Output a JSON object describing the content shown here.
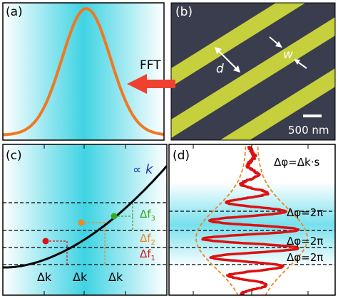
{
  "panels": {
    "a": {
      "label": "(a)"
    },
    "b": {
      "label": "(b)",
      "scale_bar": "500 nm",
      "dim_d": "d",
      "dim_w": "w"
    },
    "c": {
      "label": "(c)",
      "propto": "∝",
      "k": "k",
      "delta_k": "Δk",
      "df": [
        {
          "delta": "Δf",
          "sub": "3",
          "color": "#33aa22"
        },
        {
          "delta": "Δf",
          "sub": "2",
          "color": "#ee8822"
        },
        {
          "delta": "Δf",
          "sub": "1",
          "color": "#dd1111"
        }
      ]
    },
    "d": {
      "label": "(d)",
      "relation": "Δφ=Δk·s",
      "phase_labels": [
        "Δφ=2π",
        "Δφ=2π",
        "Δφ=2π"
      ]
    }
  },
  "arrow_label": "FFT",
  "colors": {
    "gaussian": "#f07820",
    "arrow": "#f04030",
    "cyan": "#4fd6e6",
    "curve": "#000000",
    "signal": "#dd1111",
    "envelope": "#ee8822",
    "stripe": "#c8d23a",
    "substrate": "#3a3d4d"
  },
  "chart_data": [
    {
      "type": "line",
      "panel": "a",
      "title": "",
      "series": [
        {
          "values_description_free": true,
          "x": [
            0,
            1,
            2,
            3,
            4,
            5,
            6,
            7,
            8,
            9,
            10
          ],
          "y": [
            0.01,
            0.05,
            0.19,
            0.49,
            0.85,
            1.0,
            0.85,
            0.49,
            0.19,
            0.05,
            0.01
          ]
        }
      ],
      "ylim": [
        0,
        1.05
      ]
    },
    {
      "type": "line",
      "panel": "c",
      "series": [
        {
          "values": [
            0.0,
            0.04,
            0.14,
            0.3,
            0.52,
            0.8
          ],
          "x": [
            0,
            0.2,
            0.4,
            0.6,
            0.8,
            1.0
          ]
        }
      ],
      "markers": [
        {
          "x": 0.28,
          "y": 0.09,
          "color": "#dd1111"
        },
        {
          "x": 0.47,
          "y": 0.25,
          "color": "#ee8822"
        },
        {
          "x": 0.67,
          "y": 0.44,
          "color": "#33aa22"
        }
      ]
    }
  ]
}
